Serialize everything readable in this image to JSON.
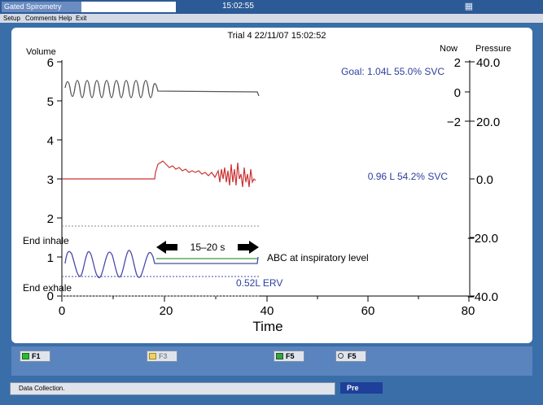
{
  "window": {
    "title": "Gated Spirometry",
    "time": "15:02:55",
    "icon": "window-restore-icon"
  },
  "menu": [
    "Setup",
    "Comments",
    "Help",
    "Exit"
  ],
  "plot": {
    "header": "Trial 4 22/11/07  15:02:52",
    "volume_label": "Volume",
    "now_label": "Now",
    "pressure_label": "Pressure",
    "volume_ticks": [
      "6",
      "5",
      "4",
      "3",
      "2",
      "1",
      "0"
    ],
    "time_ticks": [
      "0",
      "20",
      "40",
      "60",
      "80"
    ],
    "time_label": "Time",
    "now_ticks": [
      "2",
      "0",
      "−2"
    ],
    "pressure_ticks": [
      "40.0",
      "20.0",
      "0.0",
      "−20.0",
      "−40.0"
    ],
    "goal_text": "Goal: 1.04L 55.0% SVC",
    "svc_text": "0.96 L 54.2% SVC",
    "end_inhale": "End inhale",
    "end_exhale": "End exhale",
    "interval_text": "15–20 s",
    "abc_text": "ABC at inspiratory level",
    "erv_text": "0.52L ERV",
    "colors": {
      "volume_trace": "#555555",
      "flow_trace": "#cc3333",
      "breath_trace": "#4a4aa8",
      "abc_line": "#3a9a3a",
      "label_blue": "#2e3f9e"
    }
  },
  "fkeys": [
    {
      "label": "F1",
      "icon": "green-square-icon",
      "enabled": true
    },
    {
      "label": "F3",
      "icon": "folder-icon",
      "enabled": false
    },
    {
      "label": "F5",
      "icon": "folder-lock-icon",
      "enabled": true
    },
    {
      "label": "F5",
      "icon": "magnifier-icon",
      "enabled": true
    }
  ],
  "status": {
    "message": "Data Collection.",
    "mode": "Pre"
  }
}
